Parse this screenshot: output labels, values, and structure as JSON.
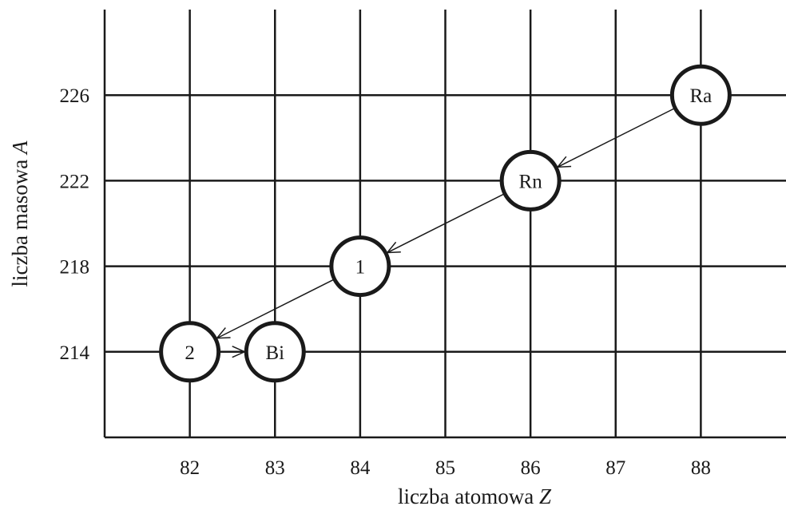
{
  "chart_data": {
    "type": "scatter",
    "title": "",
    "xlabel": "liczba atomowa",
    "xlabel_var": "Z",
    "ylabel": "liczba masowa",
    "ylabel_var": "A",
    "x_ticks": [
      82,
      83,
      84,
      85,
      86,
      87,
      88
    ],
    "y_ticks": [
      214,
      218,
      222,
      226
    ],
    "xlim": [
      81,
      89
    ],
    "ylim": [
      210,
      230
    ],
    "grid": true,
    "nuclides": [
      {
        "label": "Ra",
        "z": 88,
        "a": 226
      },
      {
        "label": "Rn",
        "z": 86,
        "a": 222
      },
      {
        "label": "1",
        "z": 84,
        "a": 218
      },
      {
        "label": "2",
        "z": 82,
        "a": 214
      },
      {
        "label": "Bi",
        "z": 83,
        "a": 214
      }
    ],
    "transitions": [
      {
        "from": "Ra",
        "to": "Rn"
      },
      {
        "from": "Rn",
        "to": "1"
      },
      {
        "from": "1",
        "to": "2"
      },
      {
        "from": "2",
        "to": "Bi"
      }
    ]
  }
}
